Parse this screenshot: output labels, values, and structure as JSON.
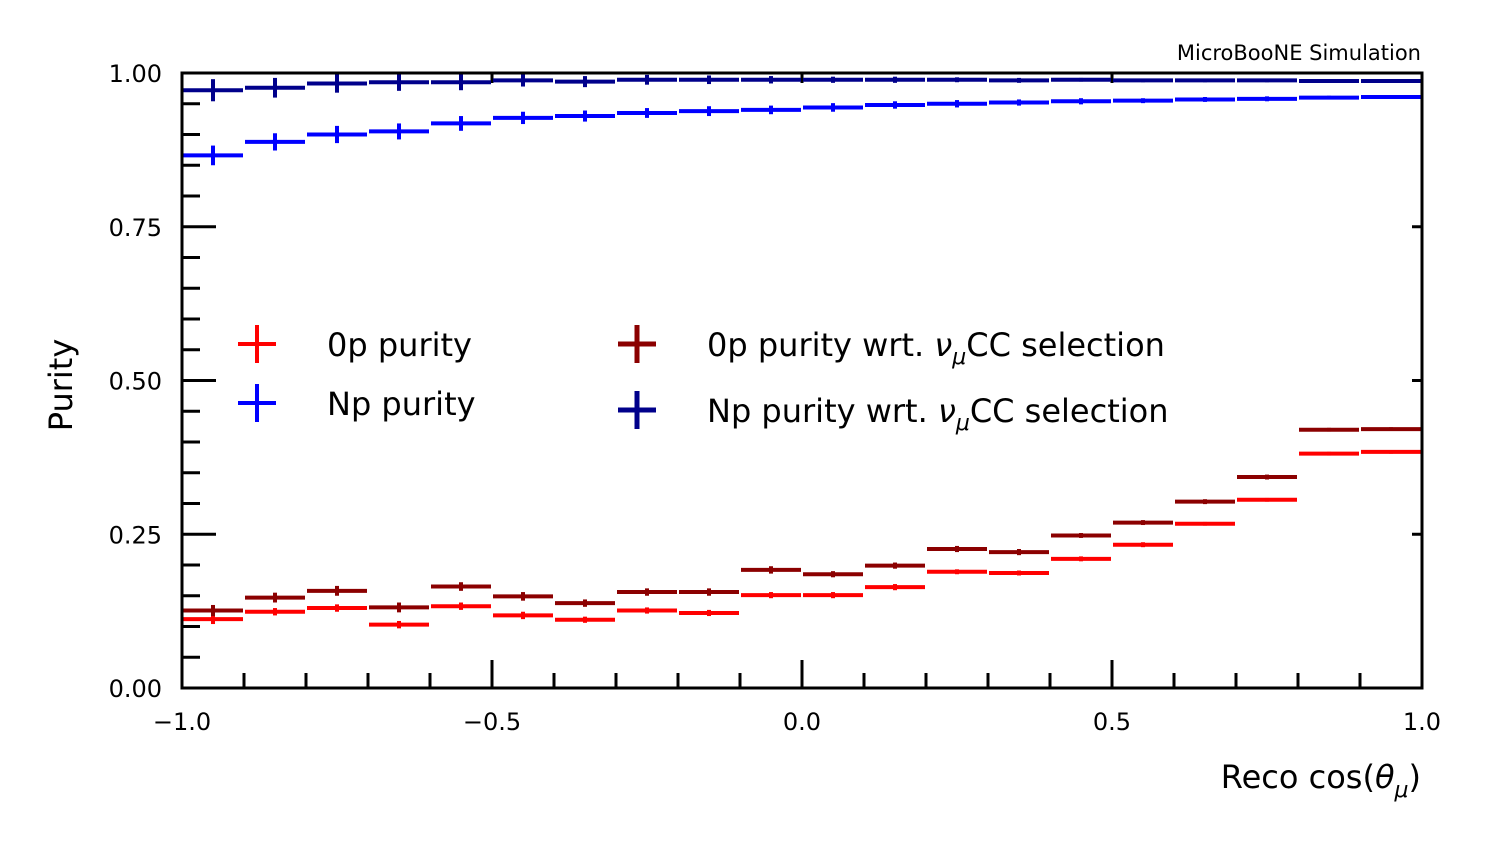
{
  "chart_data": {
    "type": "errorbar-step",
    "annotation": "MicroBooNE Simulation",
    "xlabel": "Reco cos(θμ)",
    "xlabel_parts": {
      "main": "Reco cos(",
      "theta": "θ",
      "sub": "μ",
      "close": ")"
    },
    "ylabel": "Purity",
    "xlim": [
      -1.0,
      1.0
    ],
    "ylim": [
      0.0,
      1.0
    ],
    "x_ticks": [
      -1.0,
      -0.5,
      0.0,
      0.5,
      1.0
    ],
    "x_tick_labels": [
      "−1.0",
      "−0.5",
      "0.0",
      "0.5",
      "1.0"
    ],
    "y_ticks": [
      0.0,
      0.25,
      0.5,
      0.75,
      1.0
    ],
    "y_tick_labels": [
      "0.00",
      "0.25",
      "0.50",
      "0.75",
      "1.00"
    ],
    "bin_edges": [
      -1.0,
      -0.9,
      -0.8,
      -0.7,
      -0.6,
      -0.5,
      -0.4,
      -0.3,
      -0.2,
      -0.1,
      0.0,
      0.1,
      0.2,
      0.3,
      0.4,
      0.5,
      0.6,
      0.7,
      0.8,
      0.9,
      1.0
    ],
    "series": [
      {
        "name": "0p purity",
        "color": "#ff0000",
        "values": [
          0.112,
          0.124,
          0.13,
          0.103,
          0.133,
          0.118,
          0.111,
          0.126,
          0.122,
          0.151,
          0.151,
          0.164,
          0.189,
          0.187,
          0.21,
          0.233,
          0.267,
          0.306,
          0.381,
          0.384
        ],
        "errors": [
          0.008,
          0.006,
          0.006,
          0.006,
          0.006,
          0.006,
          0.005,
          0.005,
          0.005,
          0.005,
          0.005,
          0.005,
          0.004,
          0.004,
          0.004,
          0.004,
          0.003,
          0.003,
          0.003,
          0.003
        ]
      },
      {
        "name": "Np purity",
        "color": "#0000ff",
        "values": [
          0.866,
          0.888,
          0.9,
          0.905,
          0.918,
          0.927,
          0.93,
          0.935,
          0.938,
          0.94,
          0.944,
          0.948,
          0.95,
          0.952,
          0.954,
          0.955,
          0.957,
          0.958,
          0.96,
          0.961
        ],
        "errors": [
          0.016,
          0.014,
          0.014,
          0.013,
          0.012,
          0.01,
          0.009,
          0.008,
          0.008,
          0.007,
          0.007,
          0.006,
          0.006,
          0.005,
          0.005,
          0.004,
          0.004,
          0.004,
          0.003,
          0.003
        ]
      },
      {
        "name": "0p purity wrt. νμCC selection",
        "label_parts": {
          "pre": "0p purity wrt. ",
          "nu": "ν",
          "sub": "μ",
          "post": "CC selection"
        },
        "color": "#8b0000",
        "values": [
          0.126,
          0.147,
          0.158,
          0.131,
          0.165,
          0.149,
          0.138,
          0.156,
          0.156,
          0.192,
          0.185,
          0.199,
          0.226,
          0.221,
          0.248,
          0.269,
          0.303,
          0.343,
          0.42,
          0.421
        ],
        "errors": [
          0.009,
          0.008,
          0.008,
          0.008,
          0.007,
          0.007,
          0.006,
          0.006,
          0.006,
          0.006,
          0.005,
          0.005,
          0.005,
          0.005,
          0.004,
          0.004,
          0.004,
          0.004,
          0.003,
          0.003
        ]
      },
      {
        "name": "Np purity wrt. νμCC selection",
        "label_parts": {
          "pre": "Np purity wrt. ",
          "nu": "ν",
          "sub": "μ",
          "post": "CC selection"
        },
        "color": "#00008b",
        "values": [
          0.972,
          0.976,
          0.983,
          0.985,
          0.985,
          0.988,
          0.986,
          0.989,
          0.989,
          0.989,
          0.989,
          0.989,
          0.989,
          0.988,
          0.989,
          0.988,
          0.988,
          0.988,
          0.987,
          0.987
        ],
        "errors": [
          0.018,
          0.016,
          0.015,
          0.014,
          0.013,
          0.01,
          0.009,
          0.008,
          0.007,
          0.006,
          0.005,
          0.005,
          0.004,
          0.004,
          0.003,
          0.003,
          0.003,
          0.003,
          0.002,
          0.002
        ]
      }
    ],
    "legend": {
      "left": [
        "0p purity",
        "Np purity"
      ],
      "right": [
        "0p purity wrt. νμCC selection",
        "Np purity wrt. νμCC selection"
      ]
    }
  }
}
